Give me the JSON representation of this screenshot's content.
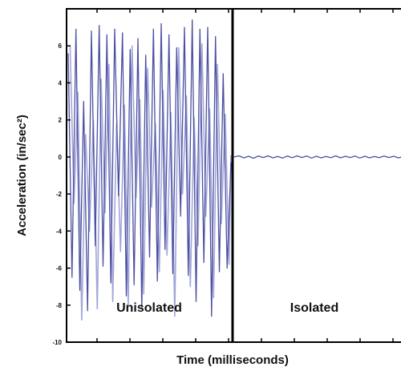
{
  "chart_data": {
    "type": "line",
    "xlabel": "Time (milliseconds)",
    "ylabel": "Acceleration (in/sec²)",
    "ylim": [
      -10,
      8
    ],
    "yticks": [
      6,
      4,
      2,
      0,
      -2,
      -4,
      -6,
      -8,
      -10
    ],
    "grid": false,
    "region_labels": [
      "Unisolated",
      "Isolated"
    ],
    "colors": {
      "dark_series": "#4a4fa0",
      "light_series": "#a3a6d9",
      "axes": "#000000"
    },
    "series": [
      {
        "region": "Unisolated",
        "style": "dark",
        "y": [
          5.6,
          -6.5,
          6.9,
          -7.2,
          3.0,
          -8.3,
          6.8,
          -4.8,
          7.1,
          -5.9,
          6.6,
          -6.8,
          6.9,
          -2.1,
          6.7,
          -7.5,
          5.8,
          -6.9,
          6.4,
          -8.2,
          5.5,
          -5.4,
          6.9,
          -6.7,
          7.2,
          -5.0,
          6.6,
          -6.3,
          5.9,
          -3.2,
          7.0,
          -6.4,
          7.4,
          -7.8,
          6.9,
          -5.7,
          7.0,
          -8.6,
          6.5,
          -6.2,
          4.5,
          -6.0,
          -0.3
        ]
      },
      {
        "region": "Unisolated",
        "style": "light",
        "y": [
          6.0,
          -2.5,
          3.5,
          -8.8,
          1.2,
          -4.0,
          2.0,
          -8.2,
          4.2,
          -3.0,
          5.0,
          -7.8,
          1.8,
          -5.1,
          2.8,
          -8.0,
          6.0,
          -2.2,
          3.1,
          -7.4,
          4.8,
          -2.7,
          1.8,
          -6.2,
          3.6,
          -5.3,
          2.4,
          -8.6,
          5.9,
          -2.0,
          3.3,
          -7.0,
          2.1,
          -4.8,
          6.1,
          -3.2,
          2.6,
          -7.6,
          5.0,
          -3.6,
          2.3,
          -5.8,
          0.1
        ]
      },
      {
        "region": "Isolated",
        "style": "dark",
        "y": [
          0.0,
          0.06,
          -0.05,
          0.04,
          -0.07,
          0.05,
          -0.03,
          0.06,
          -0.05,
          0.03,
          -0.06,
          0.05,
          -0.04,
          0.06,
          -0.03,
          0.05,
          -0.06,
          0.04,
          -0.05,
          0.03,
          -0.04,
          0.06,
          -0.05,
          0.04,
          -0.03,
          0.05,
          -0.06,
          0.04,
          -0.05,
          0.03,
          -0.04,
          0.05,
          -0.03,
          0.04,
          -0.05,
          0.03,
          0.0
        ]
      }
    ]
  }
}
